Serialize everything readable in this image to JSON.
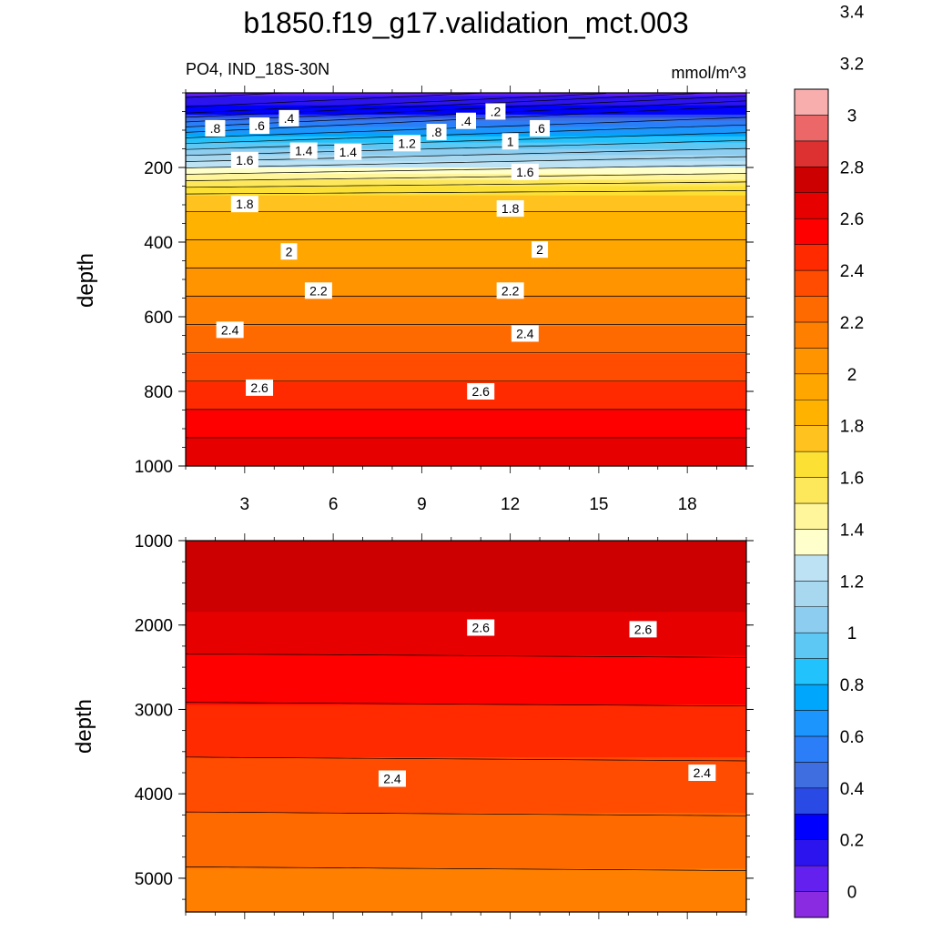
{
  "chart_data": {
    "type": "contour",
    "title": "b1850.f19_g17.validation_mct.003",
    "subtitle_left": "PO4, IND_18S-30N",
    "subtitle_right": "mmol/m^3",
    "colorbar": {
      "levels": [
        0,
        0.2,
        0.4,
        0.6,
        0.8,
        1,
        1.2,
        1.4,
        1.6,
        1.8,
        2,
        2.2,
        2.4,
        2.6,
        2.8,
        3,
        3.2,
        3.4
      ],
      "labels": [
        "0",
        "0.2",
        "0.4",
        "0.6",
        "0.8",
        "1",
        "1.2",
        "1.4",
        "1.6",
        "1.8",
        "2",
        "2.2",
        "2.4",
        "2.6",
        "2.8",
        "3",
        "3.2",
        "3.4"
      ],
      "colors": [
        "#8a2be2",
        "#6320ee",
        "#2c14ee",
        "#0000ff",
        "#2a4ae6",
        "#3e6ee0",
        "#2c7ef8",
        "#1c96fc",
        "#00a6fc",
        "#22c2fc",
        "#5ec8f4",
        "#8ccdf0",
        "#a8d8ef",
        "#bde2f3",
        "#ffffcc",
        "#fff59a",
        "#fde85c",
        "#fde034",
        "#ffc21e",
        "#ffb300",
        "#ffa600",
        "#ff9400",
        "#ff8000",
        "#ff6a00",
        "#ff4c00",
        "#ff2a00",
        "#ff0000",
        "#e60000",
        "#cc0000",
        "#dd3030",
        "#ec6868",
        "#f9aeae"
      ]
    },
    "panels": [
      {
        "name": "upper",
        "ylabel": "depth",
        "x_range": [
          1,
          20
        ],
        "y_range": [
          0,
          1000
        ],
        "x_ticks": [
          3,
          6,
          9,
          12,
          15,
          18
        ],
        "y_ticks": [
          200,
          400,
          600,
          800,
          1000
        ],
        "y_tick_labels": [
          "200",
          "400",
          "600",
          "800",
          "1000"
        ],
        "x_tick_labels": [
          "3",
          "6",
          "9",
          "12",
          "15",
          "18"
        ],
        "contour_labels": [
          {
            "text": ".8",
            "x": 2.0,
            "y": 95
          },
          {
            "text": ".6",
            "x": 3.5,
            "y": 88
          },
          {
            "text": ".4",
            "x": 4.5,
            "y": 68
          },
          {
            "text": ".2",
            "x": 11.5,
            "y": 50
          },
          {
            "text": ".4",
            "x": 10.5,
            "y": 75
          },
          {
            "text": ".8",
            "x": 9.5,
            "y": 105
          },
          {
            "text": ".6",
            "x": 13.0,
            "y": 95
          },
          {
            "text": "1",
            "x": 12.0,
            "y": 130
          },
          {
            "text": "1.2",
            "x": 8.5,
            "y": 135
          },
          {
            "text": "1.4",
            "x": 5.0,
            "y": 155
          },
          {
            "text": "1.4",
            "x": 6.5,
            "y": 158
          },
          {
            "text": "1.6",
            "x": 3.0,
            "y": 180
          },
          {
            "text": "1.6",
            "x": 12.5,
            "y": 212
          },
          {
            "text": "1.8",
            "x": 3.0,
            "y": 298
          },
          {
            "text": "1.8",
            "x": 12.0,
            "y": 310
          },
          {
            "text": "2",
            "x": 4.5,
            "y": 425
          },
          {
            "text": "2",
            "x": 13.0,
            "y": 420
          },
          {
            "text": "2.2",
            "x": 5.5,
            "y": 530
          },
          {
            "text": "2.2",
            "x": 12.0,
            "y": 530
          },
          {
            "text": "2.4",
            "x": 2.5,
            "y": 635
          },
          {
            "text": "2.4",
            "x": 12.5,
            "y": 645
          },
          {
            "text": "2.6",
            "x": 3.5,
            "y": 790
          },
          {
            "text": "2.6",
            "x": 11.0,
            "y": 800
          }
        ]
      },
      {
        "name": "lower",
        "ylabel": "depth",
        "x_range": [
          1,
          20
        ],
        "y_range": [
          1000,
          5400
        ],
        "x_ticks": [
          3,
          6,
          9,
          12,
          15,
          18
        ],
        "y_ticks": [
          1000,
          2000,
          3000,
          4000,
          5000
        ],
        "y_tick_labels": [
          "1000",
          "2000",
          "3000",
          "4000",
          "5000"
        ],
        "contour_labels": [
          {
            "text": "2.6",
            "x": 11.0,
            "y": 2030
          },
          {
            "text": "2.6",
            "x": 16.5,
            "y": 2050
          },
          {
            "text": "2.4",
            "x": 8.0,
            "y": 3820
          },
          {
            "text": "2.4",
            "x": 18.5,
            "y": 3750
          }
        ]
      }
    ]
  }
}
